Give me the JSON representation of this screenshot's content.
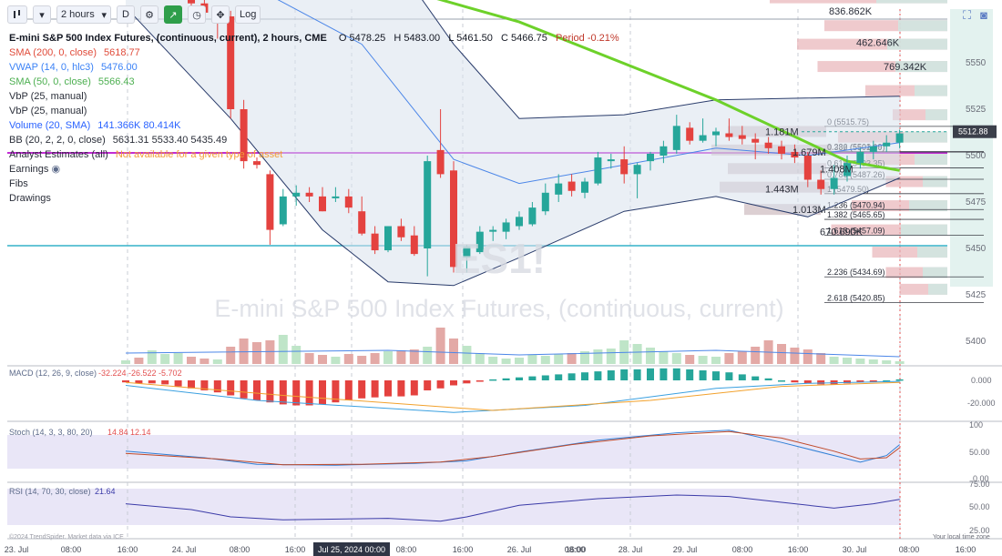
{
  "toolbar": {
    "interval": "2 hours",
    "period_letter": "D",
    "log_label": "Log",
    "chart_type_icon": "candles-icon",
    "settings_icon": "gear-icon",
    "trend_icon": "trend-arrow-icon",
    "replay_icon": "clock-icon",
    "drawing_icon": "crosshair-icon"
  },
  "header": {
    "title": "E-mini S&P 500 Index Futures, (continuous, current), 2 hours, CME",
    "open": "O 5478.25",
    "high": "H 5483.00",
    "low": "L 5461.50",
    "close": "C 5466.75",
    "period": "Period -0.21%"
  },
  "legend": [
    {
      "label": "SMA (200, 0, close)",
      "value": "5618.77",
      "color": "#e04b3a"
    },
    {
      "label": "VWAP (14, 0, hlc3)",
      "value": "5476.00",
      "color": "#3b82f6"
    },
    {
      "label": "SMA (50, 0, close)",
      "value": "5566.43",
      "color": "#4caf50"
    },
    {
      "label": "VbP (25, manual)",
      "value": "",
      "color": "#2a2e39"
    },
    {
      "label": "VbP (25, manual)",
      "value": "",
      "color": "#2a2e39"
    },
    {
      "label": "Volume (20, SMA)",
      "value": "141.366K 80.414K",
      "color": "#2962ff"
    },
    {
      "label": "BB (20, 2, 2, 0, close)",
      "value": "5631.31 5533.40 5435.49",
      "color": "#2a2e39"
    },
    {
      "label": "Analyst Estimates (all)",
      "value": "Not available for a given type of asset",
      "color": "#2a2e39"
    },
    {
      "label": "Earnings",
      "value": "",
      "color": "#2a2e39"
    },
    {
      "label": "Fibs",
      "value": "",
      "color": "#2a2e39"
    },
    {
      "label": "Drawings",
      "value": "",
      "color": "#2a2e39"
    }
  ],
  "watermark": {
    "symbol": "ES1!",
    "name": "E-mini S&P 500 Index Futures, (continuous, current)"
  },
  "price_axis": {
    "ticks": [
      5550,
      5525,
      5500,
      5475,
      5450,
      5425,
      5400
    ],
    "current_price": "5512.88"
  },
  "fib_levels": [
    {
      "label": "0 (5515.75)",
      "price": 5515.75
    },
    {
      "label": "0.236 (5502.19)",
      "price": 5502.19
    },
    {
      "label": "0.382 (5501.90)",
      "price": 5501.9
    },
    {
      "label": "0.618 (5493.35)",
      "price": 5493.35
    },
    {
      "label": "0.786 (5487.26)",
      "price": 5487.26
    },
    {
      "label": "1 (5479.50)",
      "price": 5479.5
    },
    {
      "label": "1.236 (5470.94)",
      "price": 5470.94
    },
    {
      "label": "1.382 (5465.65)",
      "price": 5465.65
    },
    {
      "label": "1.618 (5457.09)",
      "price": 5457.09
    },
    {
      "label": "2.236 (5434.69)",
      "price": 5434.69
    },
    {
      "label": "2.618 (5420.85)",
      "price": 5420.85
    }
  ],
  "vbp_labels": [
    {
      "label": "836.862K",
      "price": 5578
    },
    {
      "label": "462.646K",
      "price": 5561
    },
    {
      "label": "769.342K",
      "price": 5548
    },
    {
      "label": "1.181M",
      "price": 5513
    },
    {
      "label": "1.679M",
      "price": 5502
    },
    {
      "label": "1.408M",
      "price": 5493
    },
    {
      "label": "1.443M",
      "price": 5482
    },
    {
      "label": "1.013M",
      "price": 5471
    },
    {
      "label": "670.690K",
      "price": 5459
    }
  ],
  "time_axis": {
    "labels": [
      "23. Jul",
      "08:00",
      "16:00",
      "24. Jul",
      "08:00",
      "16:00",
      "Jul 25, 2024 00:00",
      "08:00",
      "16:00",
      "26. Jul",
      "08:00",
      "16:00",
      "28. Jul",
      "29. Jul",
      "08:00",
      "16:00",
      "30. Jul",
      "08:00",
      "16:00"
    ],
    "timezone_label": "Your local time zone",
    "copyright": "©2024 TrendSpider. Market data via ICE"
  },
  "macd": {
    "label": "MACD (12, 26, 9, close)",
    "values": "-32.224  -26.522  -5.702",
    "ticks": [
      "0.000",
      "-20.000"
    ]
  },
  "stoch": {
    "label": "Stoch (14, 3, 3, 80, 20)",
    "values": "14.84  12.14",
    "ticks": [
      "100",
      "50.00",
      "0.00"
    ]
  },
  "rsi": {
    "label": "RSI (14, 70, 30, close)",
    "value": "21.64",
    "ticks": [
      "75.00",
      "50.00",
      "25.00"
    ]
  },
  "chart_data": {
    "type": "candlestick",
    "title": "E-mini S&P 500 Index Futures, (continuous, current), 2 hours, CME",
    "candles": [
      {
        "o": 5598,
        "h": 5603,
        "l": 5594,
        "c": 5602
      },
      {
        "o": 5602,
        "h": 5606,
        "l": 5598,
        "c": 5599
      },
      {
        "o": 5599,
        "h": 5602,
        "l": 5594,
        "c": 5595
      },
      {
        "o": 5600,
        "h": 5604,
        "l": 5596,
        "c": 5598
      },
      {
        "o": 5598,
        "h": 5601,
        "l": 5585,
        "c": 5588
      },
      {
        "o": 5588,
        "h": 5590,
        "l": 5580,
        "c": 5582
      },
      {
        "o": 5582,
        "h": 5585,
        "l": 5575,
        "c": 5577
      },
      {
        "o": 5576,
        "h": 5580,
        "l": 5563,
        "c": 5575
      },
      {
        "o": 5575,
        "h": 5578,
        "l": 5520,
        "c": 5525
      },
      {
        "o": 5525,
        "h": 5530,
        "l": 5493,
        "c": 5497
      },
      {
        "o": 5497,
        "h": 5499,
        "l": 5493,
        "c": 5495
      },
      {
        "o": 5490,
        "h": 5492,
        "l": 5452,
        "c": 5460
      },
      {
        "o": 5463,
        "h": 5482,
        "l": 5462,
        "c": 5478
      },
      {
        "o": 5478,
        "h": 5484,
        "l": 5473,
        "c": 5480
      },
      {
        "o": 5480,
        "h": 5483,
        "l": 5475,
        "c": 5478
      },
      {
        "o": 5478,
        "h": 5483,
        "l": 5470,
        "c": 5470
      },
      {
        "o": 5477,
        "h": 5483,
        "l": 5475,
        "c": 5478
      },
      {
        "o": 5478,
        "h": 5482,
        "l": 5469,
        "c": 5472
      },
      {
        "o": 5470,
        "h": 5478,
        "l": 5457,
        "c": 5458
      },
      {
        "o": 5458,
        "h": 5462,
        "l": 5447,
        "c": 5449
      },
      {
        "o": 5449,
        "h": 5462,
        "l": 5448,
        "c": 5462
      },
      {
        "o": 5462,
        "h": 5466,
        "l": 5454,
        "c": 5456
      },
      {
        "o": 5457,
        "h": 5462,
        "l": 5446,
        "c": 5447
      },
      {
        "o": 5450,
        "h": 5500,
        "l": 5435,
        "c": 5497
      },
      {
        "o": 5503,
        "h": 5525,
        "l": 5488,
        "c": 5490
      },
      {
        "o": 5492,
        "h": 5497,
        "l": 5437,
        "c": 5440
      },
      {
        "o": 5445,
        "h": 5452,
        "l": 5437,
        "c": 5451
      },
      {
        "o": 5448,
        "h": 5462,
        "l": 5447,
        "c": 5459
      },
      {
        "o": 5459,
        "h": 5462,
        "l": 5454,
        "c": 5460
      },
      {
        "o": 5459,
        "h": 5466,
        "l": 5455,
        "c": 5464
      },
      {
        "o": 5462,
        "h": 5470,
        "l": 5460,
        "c": 5467
      },
      {
        "o": 5463,
        "h": 5475,
        "l": 5462,
        "c": 5472
      },
      {
        "o": 5470,
        "h": 5485,
        "l": 5468,
        "c": 5480
      },
      {
        "o": 5479,
        "h": 5490,
        "l": 5475,
        "c": 5485
      },
      {
        "o": 5486,
        "h": 5490,
        "l": 5478,
        "c": 5481
      },
      {
        "o": 5480,
        "h": 5488,
        "l": 5477,
        "c": 5486
      },
      {
        "o": 5485,
        "h": 5502,
        "l": 5484,
        "c": 5499
      },
      {
        "o": 5497,
        "h": 5501,
        "l": 5493,
        "c": 5498
      },
      {
        "o": 5498,
        "h": 5505,
        "l": 5485,
        "c": 5490
      },
      {
        "o": 5490,
        "h": 5496,
        "l": 5477,
        "c": 5495
      },
      {
        "o": 5497,
        "h": 5502,
        "l": 5492,
        "c": 5501
      },
      {
        "o": 5500,
        "h": 5508,
        "l": 5496,
        "c": 5505
      },
      {
        "o": 5503,
        "h": 5522,
        "l": 5501,
        "c": 5516
      },
      {
        "o": 5515,
        "h": 5518,
        "l": 5506,
        "c": 5508
      },
      {
        "o": 5508,
        "h": 5520,
        "l": 5507,
        "c": 5511
      },
      {
        "o": 5511,
        "h": 5515,
        "l": 5505,
        "c": 5513
      },
      {
        "o": 5512,
        "h": 5520,
        "l": 5508,
        "c": 5510
      },
      {
        "o": 5511,
        "h": 5516,
        "l": 5506,
        "c": 5509
      },
      {
        "o": 5509,
        "h": 5512,
        "l": 5498,
        "c": 5507
      },
      {
        "o": 5507,
        "h": 5510,
        "l": 5501,
        "c": 5504
      },
      {
        "o": 5505,
        "h": 5508,
        "l": 5498,
        "c": 5501
      },
      {
        "o": 5502,
        "h": 5506,
        "l": 5496,
        "c": 5499
      },
      {
        "o": 5500,
        "h": 5502,
        "l": 5483,
        "c": 5487
      },
      {
        "o": 5487,
        "h": 5492,
        "l": 5479,
        "c": 5482
      },
      {
        "o": 5482,
        "h": 5495,
        "l": 5479,
        "c": 5488
      },
      {
        "o": 5489,
        "h": 5500,
        "l": 5486,
        "c": 5496
      },
      {
        "o": 5496,
        "h": 5504,
        "l": 5493,
        "c": 5502
      },
      {
        "o": 5502,
        "h": 5508,
        "l": 5498,
        "c": 5505
      },
      {
        "o": 5505,
        "h": 5511,
        "l": 5502,
        "c": 5507
      },
      {
        "o": 5507,
        "h": 5514,
        "l": 5504,
        "c": 5512
      }
    ],
    "sma50": [
      [
        0,
        5622
      ],
      [
        15,
        5602
      ],
      [
        30,
        5572
      ],
      [
        45,
        5530
      ],
      [
        55,
        5497
      ],
      [
        59,
        5492
      ]
    ],
    "bb_upper": [
      [
        0,
        5640
      ],
      [
        10,
        5650
      ],
      [
        18,
        5630
      ],
      [
        25,
        5560
      ],
      [
        30,
        5520
      ],
      [
        38,
        5522
      ],
      [
        45,
        5530
      ],
      [
        59,
        5532
      ]
    ],
    "bb_lower": [
      [
        0,
        5580
      ],
      [
        8,
        5520
      ],
      [
        15,
        5460
      ],
      [
        20,
        5432
      ],
      [
        25,
        5430
      ],
      [
        30,
        5445
      ],
      [
        38,
        5470
      ],
      [
        45,
        5478
      ],
      [
        52,
        5467
      ],
      [
        59,
        5488
      ]
    ],
    "bb_mid": [
      [
        0,
        5610
      ],
      [
        10,
        5590
      ],
      [
        18,
        5560
      ],
      [
        25,
        5498
      ],
      [
        30,
        5485
      ],
      [
        38,
        5495
      ],
      [
        45,
        5504
      ],
      [
        52,
        5500
      ],
      [
        59,
        5507
      ]
    ],
    "volume_k": [
      20,
      35,
      75,
      55,
      60,
      40,
      30,
      25,
      95,
      140,
      120,
      130,
      160,
      100,
      60,
      50,
      40,
      55,
      45,
      60,
      70,
      75,
      80,
      95,
      200,
      140,
      100,
      60,
      40,
      30,
      35,
      50,
      45,
      55,
      60,
      70,
      80,
      85,
      130,
      110,
      90,
      70,
      60,
      50,
      45,
      40,
      60,
      70,
      95,
      130,
      110,
      90,
      80,
      60,
      40,
      35,
      30,
      25,
      20,
      15
    ],
    "volume_up": [
      true,
      false,
      true,
      true,
      true,
      false,
      false,
      true,
      false,
      false,
      false,
      false,
      true,
      true,
      false,
      false,
      true,
      false,
      false,
      false,
      true,
      false,
      false,
      true,
      false,
      false,
      true,
      true,
      true,
      true,
      true,
      true,
      true,
      true,
      false,
      true,
      true,
      true,
      true,
      true,
      true,
      true,
      true,
      false,
      true,
      true,
      false,
      false,
      false,
      false,
      false,
      false,
      false,
      false,
      true,
      true,
      true,
      true,
      true,
      true
    ],
    "macd_hist": [
      -2,
      -3,
      -3,
      -4,
      -6,
      -8,
      -10,
      -12,
      -15,
      -18,
      -20,
      -22,
      -24,
      -25,
      -25,
      -24,
      -22,
      -20,
      -18,
      -17,
      -16,
      -16,
      -15,
      -10,
      -8,
      -5,
      -3,
      -1,
      1,
      2,
      3,
      4,
      5,
      6,
      7,
      8,
      9,
      10,
      11,
      11,
      12,
      12,
      12,
      11,
      10,
      9,
      8,
      6,
      4,
      2,
      0,
      -2,
      -3,
      -4,
      -4,
      -3,
      -2,
      -1,
      0,
      1
    ],
    "macd_line": [
      [
        0,
        -5
      ],
      [
        10,
        -20
      ],
      [
        25,
        -32
      ],
      [
        35,
        -25
      ],
      [
        45,
        -8
      ],
      [
        52,
        -3
      ],
      [
        59,
        -1
      ]
    ],
    "macd_signal": [
      [
        0,
        -2
      ],
      [
        12,
        -15
      ],
      [
        28,
        -30
      ],
      [
        40,
        -20
      ],
      [
        50,
        -6
      ],
      [
        59,
        -2
      ]
    ],
    "stoch_k": [
      [
        0,
        40
      ],
      [
        6,
        25
      ],
      [
        10,
        10
      ],
      [
        16,
        8
      ],
      [
        22,
        12
      ],
      [
        26,
        18
      ],
      [
        30,
        38
      ],
      [
        36,
        65
      ],
      [
        42,
        82
      ],
      [
        46,
        88
      ],
      [
        50,
        60
      ],
      [
        54,
        30
      ],
      [
        56,
        15
      ],
      [
        58,
        30
      ],
      [
        59,
        55
      ]
    ],
    "stoch_d": [
      [
        0,
        35
      ],
      [
        7,
        22
      ],
      [
        12,
        9
      ],
      [
        18,
        10
      ],
      [
        24,
        15
      ],
      [
        28,
        28
      ],
      [
        34,
        55
      ],
      [
        40,
        75
      ],
      [
        46,
        85
      ],
      [
        50,
        70
      ],
      [
        54,
        40
      ],
      [
        56,
        22
      ],
      [
        58,
        25
      ],
      [
        59,
        48
      ]
    ],
    "rsi": [
      [
        0,
        48
      ],
      [
        5,
        40
      ],
      [
        8,
        30
      ],
      [
        12,
        26
      ],
      [
        20,
        28
      ],
      [
        24,
        24
      ],
      [
        26,
        30
      ],
      [
        30,
        46
      ],
      [
        36,
        55
      ],
      [
        42,
        60
      ],
      [
        46,
        58
      ],
      [
        50,
        50
      ],
      [
        54,
        42
      ],
      [
        57,
        48
      ],
      [
        59,
        54
      ]
    ]
  }
}
